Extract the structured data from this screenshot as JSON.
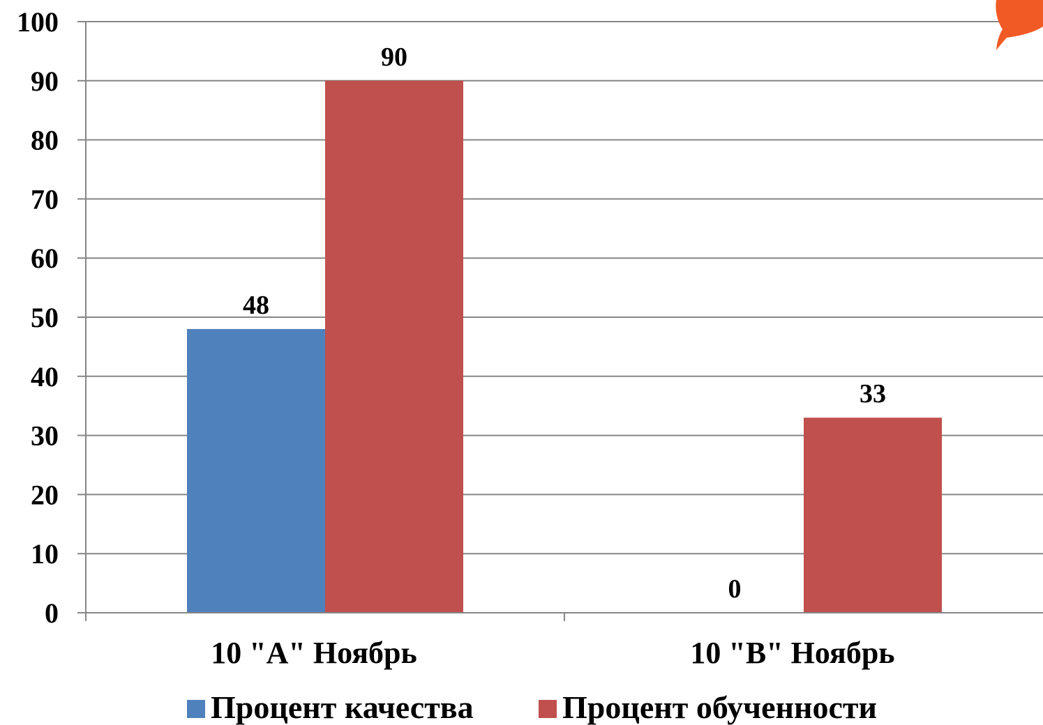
{
  "chart_data": {
    "type": "bar",
    "categories": [
      "10 \"А\" Ноябрь",
      "10 \"В\" Ноябрь"
    ],
    "series": [
      {
        "name": "Процент качества",
        "values": [
          48,
          0
        ],
        "color": "#4f81bd"
      },
      {
        "name": "Процент обученности",
        "values": [
          90,
          33
        ],
        "color": "#c0504d"
      }
    ],
    "ylim": [
      0,
      100
    ],
    "yticks": [
      0,
      10,
      20,
      30,
      40,
      50,
      60,
      70,
      80,
      90,
      100
    ],
    "grid": true,
    "legend_position": "bottom",
    "data_labels": true,
    "title": "",
    "xlabel": "",
    "ylabel": ""
  },
  "decoration": {
    "corner_shape_color": "#f15a24"
  }
}
